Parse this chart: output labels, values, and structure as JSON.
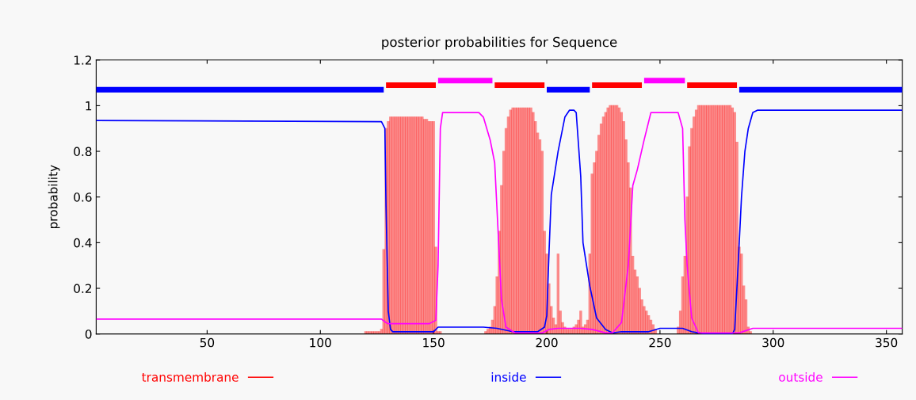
{
  "chart_data": {
    "type": "line",
    "title": "posterior probabilities for Sequence",
    "ylabel": "probability",
    "xlim": [
      1,
      357
    ],
    "xticks": [
      50,
      100,
      150,
      200,
      250,
      300,
      350
    ],
    "ylim": [
      0,
      1.2
    ],
    "yticks": [
      0,
      0.2,
      0.4,
      0.6,
      0.8,
      1,
      1.2
    ],
    "grid": false,
    "legend": "bottom",
    "series": [
      {
        "name": "transmembrane",
        "type": "bar",
        "color": "#ff0000",
        "x": [
          120,
          121,
          122,
          123,
          124,
          125,
          126,
          127,
          128,
          129,
          130,
          131,
          132,
          133,
          134,
          135,
          136,
          137,
          138,
          139,
          140,
          141,
          142,
          143,
          144,
          145,
          146,
          147,
          148,
          149,
          150,
          151,
          152,
          153,
          173,
          174,
          175,
          176,
          177,
          178,
          179,
          180,
          181,
          182,
          183,
          184,
          185,
          186,
          187,
          188,
          189,
          190,
          191,
          192,
          193,
          194,
          195,
          196,
          197,
          198,
          199,
          200,
          201,
          202,
          203,
          204,
          205,
          206,
          207,
          208,
          209,
          210,
          211,
          212,
          213,
          214,
          215,
          216,
          217,
          218,
          219,
          220,
          221,
          222,
          223,
          224,
          225,
          226,
          227,
          228,
          229,
          230,
          231,
          232,
          233,
          234,
          235,
          236,
          237,
          238,
          239,
          240,
          241,
          242,
          243,
          244,
          245,
          246,
          247,
          248,
          258,
          259,
          260,
          261,
          262,
          263,
          264,
          265,
          266,
          267,
          268,
          269,
          270,
          271,
          272,
          273,
          274,
          275,
          276,
          277,
          278,
          279,
          280,
          281,
          282,
          283,
          284,
          285,
          286,
          287,
          288,
          289,
          290
        ],
        "values": [
          0.01,
          0.01,
          0.01,
          0.01,
          0.01,
          0.01,
          0.01,
          0.02,
          0.37,
          0.9,
          0.93,
          0.95,
          0.95,
          0.95,
          0.95,
          0.95,
          0.95,
          0.95,
          0.95,
          0.95,
          0.95,
          0.95,
          0.95,
          0.95,
          0.95,
          0.95,
          0.94,
          0.94,
          0.93,
          0.93,
          0.93,
          0.38,
          0.01,
          0.01,
          0.01,
          0.02,
          0.03,
          0.06,
          0.12,
          0.25,
          0.45,
          0.65,
          0.8,
          0.9,
          0.95,
          0.98,
          0.99,
          0.99,
          0.99,
          0.99,
          0.99,
          0.99,
          0.99,
          0.99,
          0.99,
          0.97,
          0.93,
          0.88,
          0.85,
          0.8,
          0.45,
          0.35,
          0.22,
          0.12,
          0.07,
          0.04,
          0.35,
          0.1,
          0.05,
          0.03,
          0.02,
          0.02,
          0.02,
          0.03,
          0.04,
          0.06,
          0.1,
          0.03,
          0.04,
          0.06,
          0.35,
          0.7,
          0.75,
          0.8,
          0.87,
          0.92,
          0.95,
          0.97,
          0.99,
          1.0,
          1.0,
          1.0,
          1.0,
          0.99,
          0.97,
          0.93,
          0.85,
          0.75,
          0.64,
          0.34,
          0.28,
          0.25,
          0.2,
          0.15,
          0.12,
          0.1,
          0.08,
          0.06,
          0.04,
          0.02,
          0.03,
          0.1,
          0.25,
          0.34,
          0.6,
          0.82,
          0.9,
          0.95,
          0.98,
          1.0,
          1.0,
          1.0,
          1.0,
          1.0,
          1.0,
          1.0,
          1.0,
          1.0,
          1.0,
          1.0,
          1.0,
          1.0,
          1.0,
          1.0,
          0.99,
          0.97,
          0.84,
          0.38,
          0.35,
          0.21,
          0.15,
          0.03,
          0.01
        ]
      },
      {
        "name": "inside",
        "color": "#0000ff",
        "x": [
          1,
          127,
          128.5,
          129,
          130,
          131,
          132,
          150,
          152,
          172,
          178,
          185,
          196,
          199,
          200,
          201,
          202,
          205,
          208,
          210,
          212,
          213,
          215,
          216,
          219,
          222,
          226,
          229,
          233,
          245,
          250,
          260,
          264,
          270,
          282,
          283,
          284.5,
          286,
          287.5,
          289,
          291,
          293,
          357
        ],
        "values": [
          0.935,
          0.93,
          0.9,
          0.56,
          0.1,
          0.02,
          0.01,
          0.01,
          0.03,
          0.03,
          0.025,
          0.01,
          0.01,
          0.03,
          0.08,
          0.36,
          0.61,
          0.8,
          0.95,
          0.98,
          0.98,
          0.97,
          0.69,
          0.4,
          0.21,
          0.07,
          0.02,
          0.005,
          0.01,
          0.01,
          0.025,
          0.025,
          0.01,
          0,
          0,
          0.02,
          0.3,
          0.6,
          0.8,
          0.9,
          0.97,
          0.98,
          0.98
        ]
      },
      {
        "name": "outside",
        "color": "#ff00ff",
        "x": [
          1,
          127,
          129,
          130,
          148,
          151,
          152,
          153,
          154,
          170,
          172,
          175,
          177,
          178,
          179,
          180,
          182,
          186,
          198,
          201,
          205,
          215,
          220,
          226,
          229,
          233,
          236,
          238,
          240,
          243,
          246,
          258,
          260,
          261,
          262,
          264,
          267,
          285,
          288,
          291,
          357
        ],
        "values": [
          0.065,
          0.065,
          0.05,
          0.045,
          0.045,
          0.06,
          0.3,
          0.9,
          0.97,
          0.97,
          0.95,
          0.85,
          0.75,
          0.55,
          0.35,
          0.15,
          0.03,
          0.005,
          0.005,
          0.02,
          0.025,
          0.025,
          0.02,
          0.005,
          0.005,
          0.05,
          0.3,
          0.65,
          0.72,
          0.85,
          0.97,
          0.97,
          0.9,
          0.5,
          0.3,
          0.07,
          0.005,
          0.005,
          0.015,
          0.025,
          0.025
        ]
      },
      {
        "color": "#0000ff",
        "x": [
          1,
          128,
          128.5,
          200,
          219,
          219.5,
          285,
          357
        ],
        "values": [
          1.07,
          1.07,
          null,
          1.07,
          1.07,
          null,
          1.07,
          1.07
        ]
      },
      {
        "color": "#ff0000",
        "x": [
          129,
          151,
          151.5,
          177,
          199,
          199.5,
          220,
          242,
          242.5,
          262,
          284
        ],
        "values": [
          1.09,
          1.09,
          null,
          1.09,
          1.09,
          null,
          1.09,
          1.09,
          null,
          1.09,
          1.09
        ]
      },
      {
        "color": "#ff00ff",
        "x": [
          152,
          176,
          176.5,
          243,
          261
        ],
        "values": [
          1.11,
          1.11,
          null,
          1.11,
          1.11
        ]
      }
    ]
  }
}
